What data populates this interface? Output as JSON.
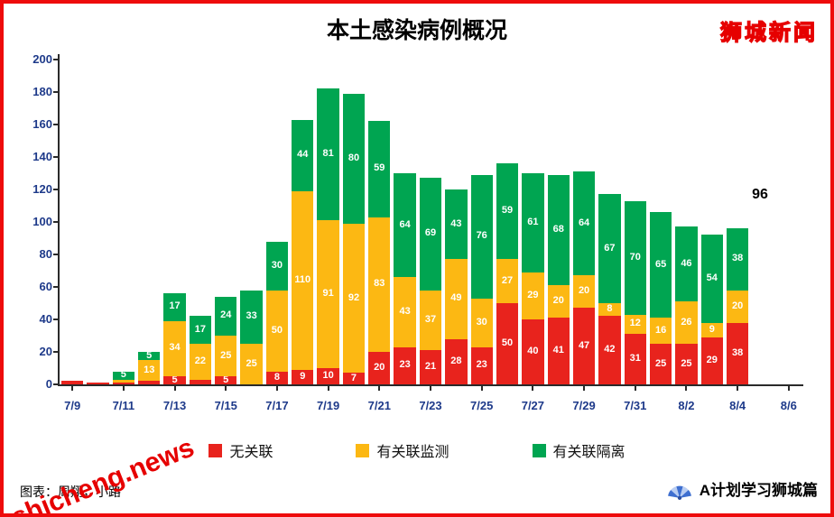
{
  "branding": {
    "site_logo": "狮城新闻",
    "channel": "A计划学习狮城篇"
  },
  "footer": {
    "credit": "图表：周翔，小路",
    "watermark": "shicheng.news"
  },
  "chart_data": {
    "type": "bar",
    "stacked": true,
    "title": "本土感染病例概况",
    "xlabel": "",
    "ylabel": "",
    "ylim": [
      0,
      200
    ],
    "ytick_step": 20,
    "grid": false,
    "legend_position": "bottom",
    "categories": [
      "7/9",
      "7/10",
      "7/11",
      "7/12",
      "7/13",
      "7/14",
      "7/15",
      "7/16",
      "7/17",
      "7/18",
      "7/19",
      "7/20",
      "7/21",
      "7/22",
      "7/23",
      "7/24",
      "7/25",
      "7/26",
      "7/27",
      "7/28",
      "7/29",
      "7/30",
      "7/31",
      "8/1",
      "8/2",
      "8/3",
      "8/4"
    ],
    "xtick_labels": [
      "7/9",
      "7/11",
      "7/13",
      "7/15",
      "7/17",
      "7/19",
      "7/21",
      "7/23",
      "7/25",
      "7/27",
      "7/29",
      "7/31",
      "8/2",
      "8/4",
      "8/6"
    ],
    "xtick_every": 2,
    "series": [
      {
        "name": "无关联",
        "color": "#e8231d",
        "values": [
          2,
          1,
          1,
          2,
          5,
          3,
          5,
          0,
          8,
          9,
          10,
          7,
          20,
          23,
          21,
          28,
          23,
          50,
          40,
          41,
          47,
          42,
          31,
          25,
          25,
          29,
          38
        ]
      },
      {
        "name": "有关联监测",
        "color": "#fcb813",
        "values": [
          0,
          0,
          2,
          13,
          34,
          22,
          25,
          25,
          50,
          110,
          91,
          92,
          83,
          43,
          37,
          49,
          30,
          27,
          29,
          20,
          20,
          8,
          12,
          16,
          26,
          9,
          20
        ]
      },
      {
        "name": "有关联隔离",
        "color": "#00a551",
        "values": [
          0,
          0,
          5,
          5,
          17,
          17,
          24,
          33,
          30,
          44,
          81,
          80,
          59,
          64,
          69,
          43,
          76,
          59,
          61,
          68,
          64,
          67,
          70,
          65,
          46,
          54,
          38
        ]
      }
    ],
    "annotation": {
      "text": "96"
    }
  }
}
